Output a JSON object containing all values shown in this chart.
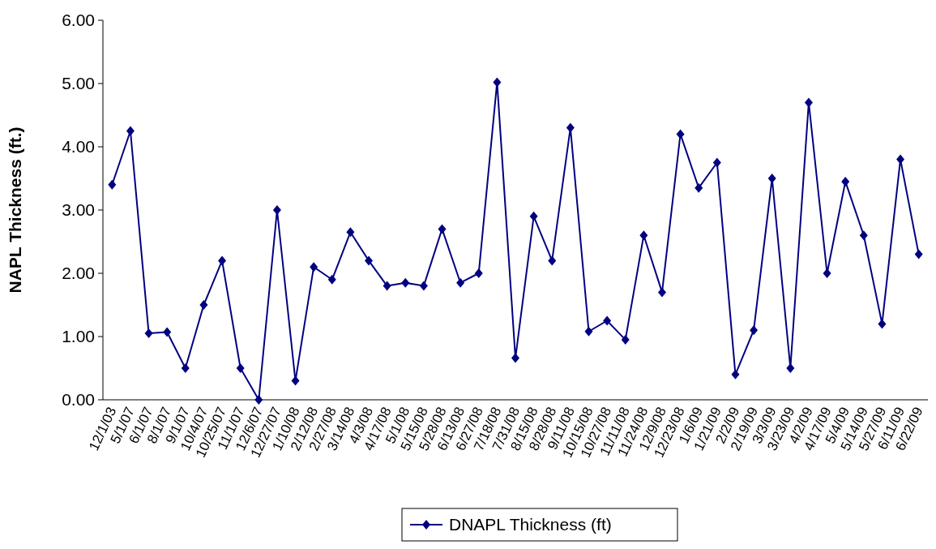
{
  "chart_data": {
    "type": "line",
    "ylabel": "NAPL Thickness (ft.)",
    "categories": [
      "12/1/03",
      "5/1/07",
      "6/1/07",
      "8/1/07",
      "9/1/07",
      "10/4/07",
      "10/25/07",
      "11/1/07",
      "12/6/07",
      "12/27/07",
      "1/10/08",
      "2/12/08",
      "2/27/08",
      "3/14/08",
      "4/3/08",
      "4/17/08",
      "5/1/08",
      "5/15/08",
      "5/28/08",
      "6/13/08",
      "6/27/08",
      "7/18/08",
      "7/31/08",
      "8/15/08",
      "8/28/08",
      "9/11/08",
      "10/15/08",
      "10/27/08",
      "11/11/08",
      "11/24/08",
      "12/9/08",
      "12/23/08",
      "1/6/09",
      "1/21/09",
      "2/2/09",
      "2/19/09",
      "3/3/09",
      "3/23/09",
      "4/2/09",
      "4/17/09",
      "5/4/09",
      "5/14/09",
      "5/27/09",
      "6/11/09",
      "6/22/09"
    ],
    "series": [
      {
        "name": "DNAPL Thickness (ft)",
        "color": "#000080",
        "values": [
          3.4,
          4.25,
          1.05,
          1.07,
          0.5,
          1.5,
          2.2,
          0.5,
          0.0,
          3.0,
          0.3,
          2.1,
          1.9,
          2.65,
          2.2,
          1.8,
          1.85,
          1.8,
          2.7,
          1.85,
          2.0,
          5.02,
          0.66,
          2.9,
          2.2,
          4.3,
          1.08,
          1.25,
          0.95,
          2.6,
          1.7,
          4.2,
          3.35,
          3.75,
          0.4,
          1.1,
          3.5,
          0.5,
          4.7,
          2.0,
          3.45,
          2.6,
          1.2,
          3.8,
          2.3
        ]
      }
    ],
    "ylim": [
      0,
      6
    ],
    "yticks": [
      {
        "value": 0,
        "label": "0.00"
      },
      {
        "value": 1,
        "label": "1.00"
      },
      {
        "value": 2,
        "label": "2.00"
      },
      {
        "value": 3,
        "label": "3.00"
      },
      {
        "value": 4,
        "label": "4.00"
      },
      {
        "value": 5,
        "label": "5.00"
      },
      {
        "value": 6,
        "label": "6.00"
      }
    ],
    "marker": "diamond",
    "line_style": "solid",
    "legend": "bottom",
    "grid": false
  }
}
